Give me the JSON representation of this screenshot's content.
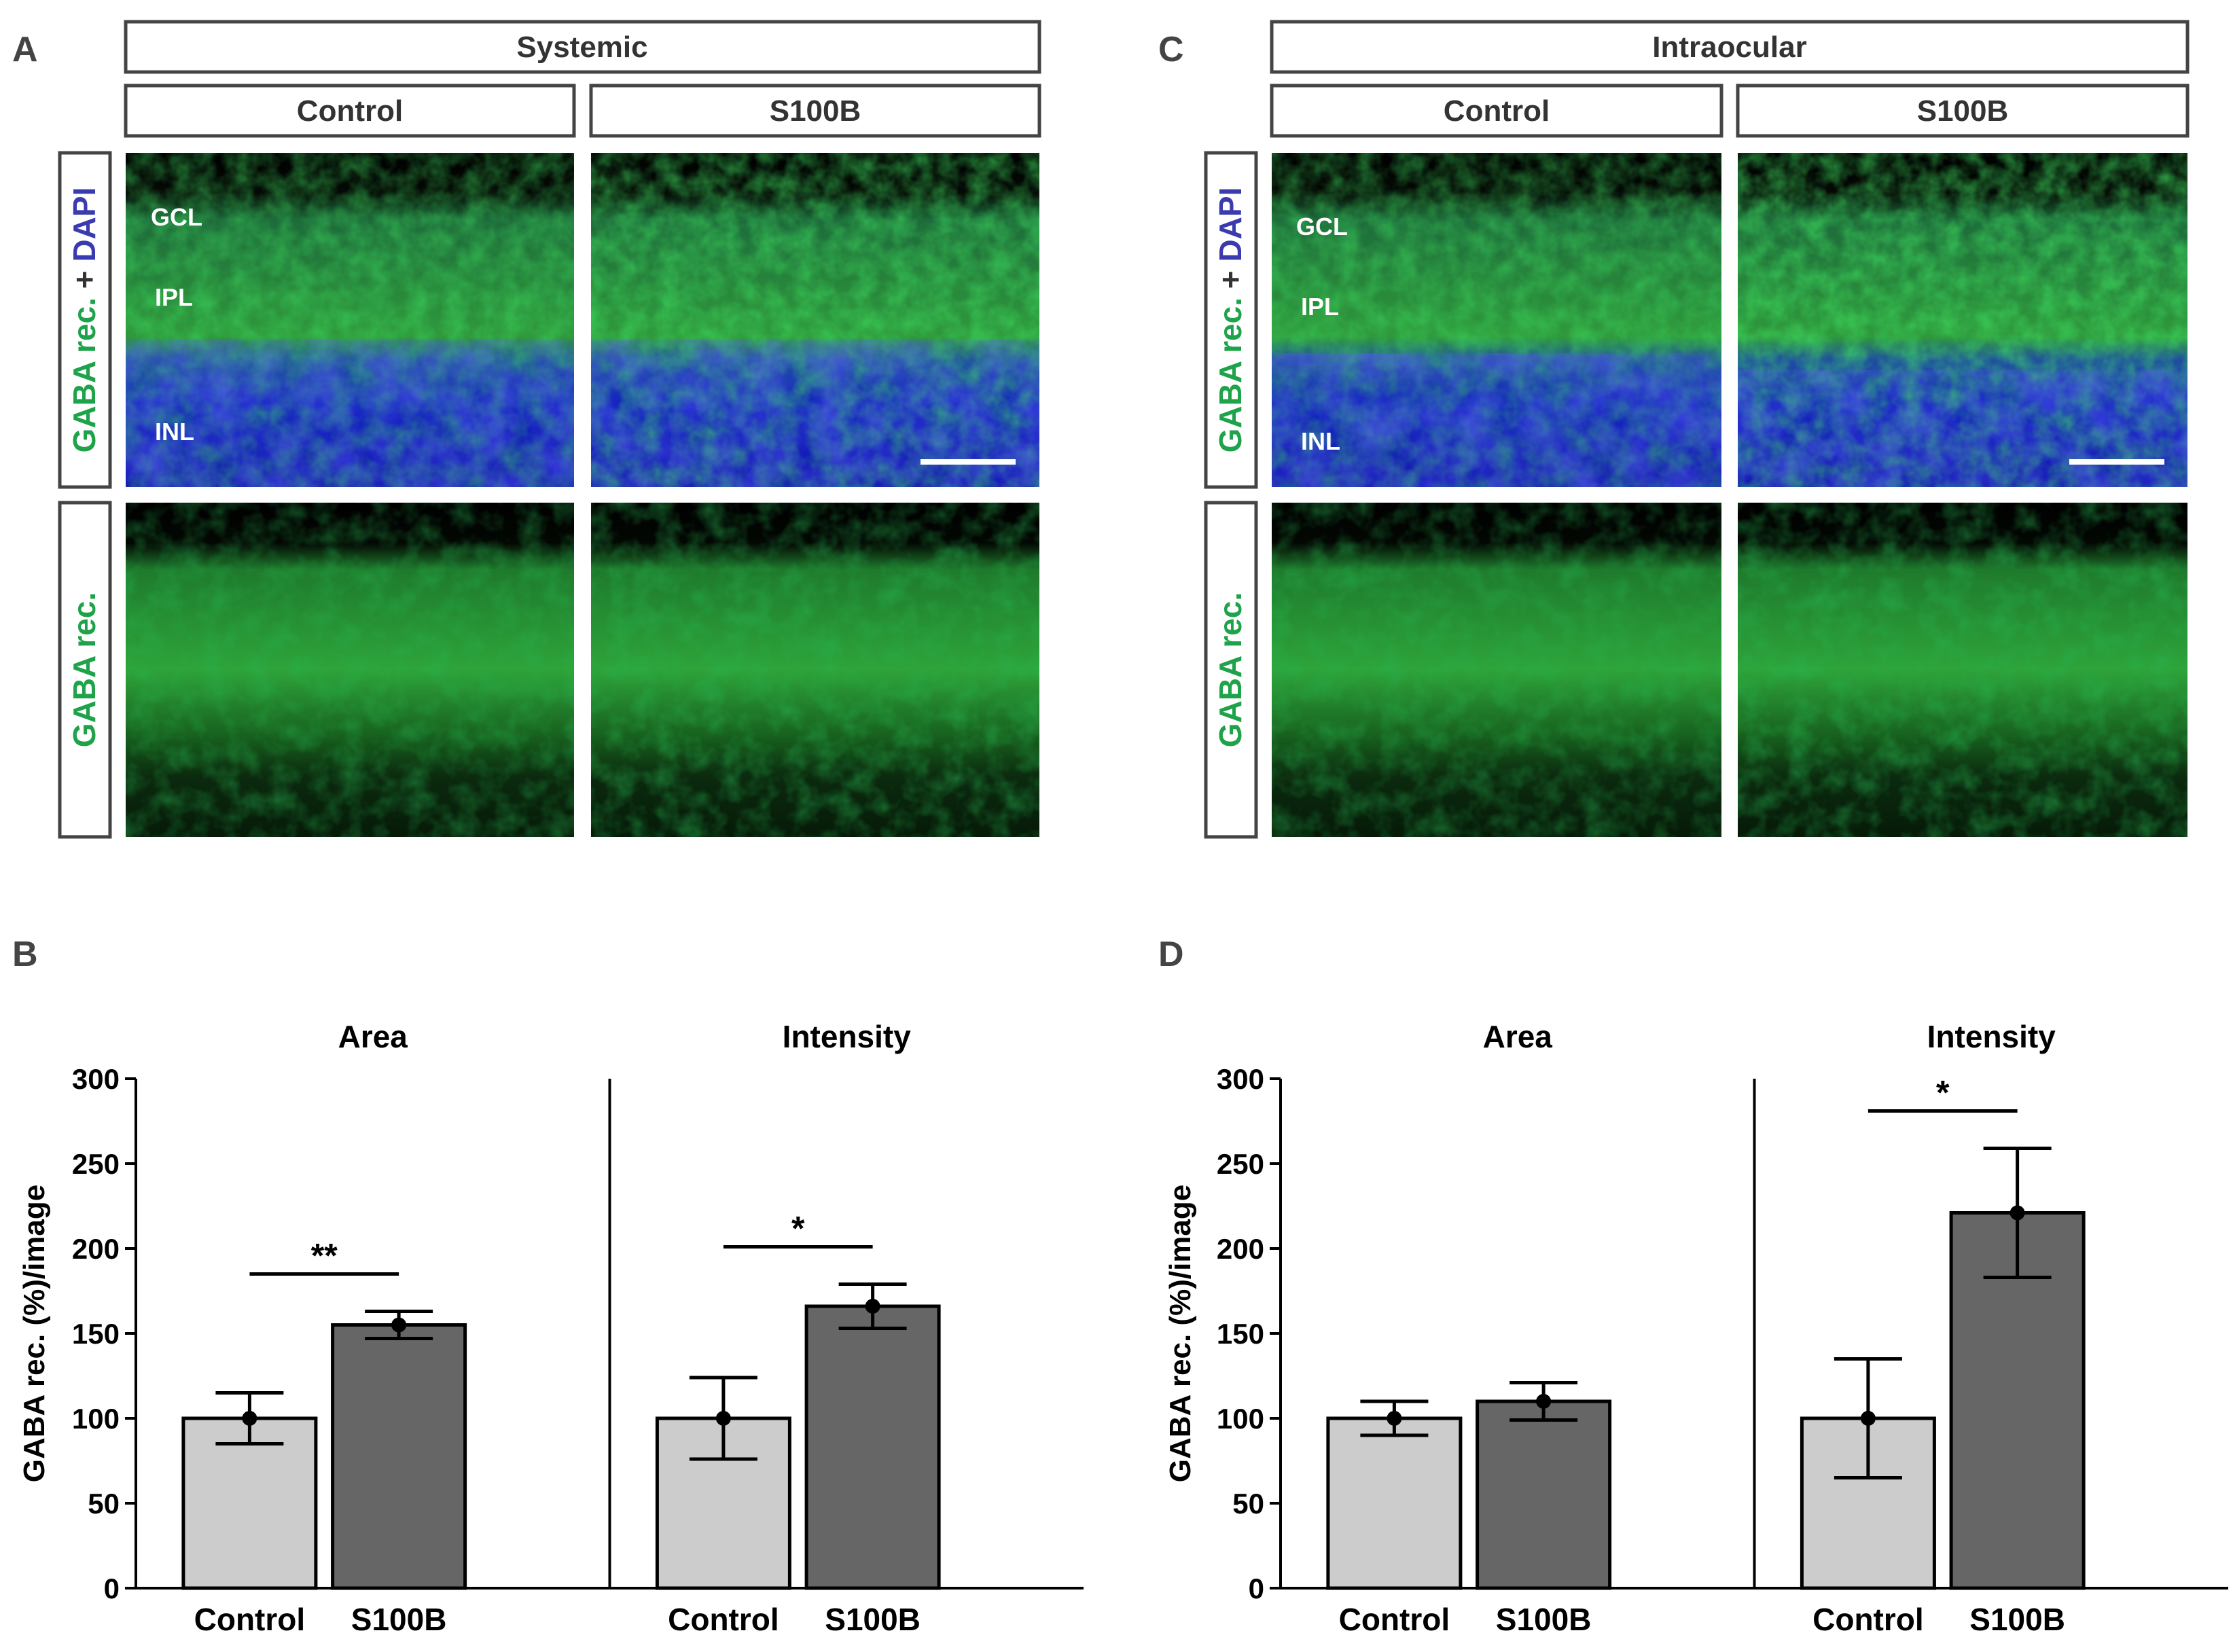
{
  "colors": {
    "control_bar": "#cccccc",
    "s100b_bar": "#666666",
    "gaba_green": "#22b14c",
    "dapi_blue": "#3a3ab0",
    "axis": "#000000"
  },
  "panels": {
    "A": {
      "letter": "A",
      "condition": "Systemic",
      "col1": "Control",
      "col2": "S100B"
    },
    "C": {
      "letter": "C",
      "condition": "Intraocular",
      "col1": "Control",
      "col2": "S100B"
    },
    "B": {
      "letter": "B"
    },
    "D": {
      "letter": "D"
    }
  },
  "row_labels": {
    "merge_green": "GABA rec.",
    "merge_plus": " + ",
    "merge_blue": "DAPI",
    "single": "GABA rec."
  },
  "layers": {
    "gcl": "GCL",
    "ipl": "IPL",
    "inl": "INL"
  },
  "chart_data": [
    {
      "panel": "B",
      "type": "bar",
      "ylabel": "GABA rec. (%)/image",
      "ylim": [
        0,
        300
      ],
      "yticks": [
        0,
        50,
        100,
        150,
        200,
        250,
        300
      ],
      "groups": [
        {
          "title": "Area",
          "categories": [
            "Control",
            "S100B"
          ],
          "values": [
            100,
            155
          ],
          "errors": [
            15,
            8
          ],
          "significance": "**"
        },
        {
          "title": "Intensity",
          "categories": [
            "Control",
            "S100B"
          ],
          "values": [
            100,
            166
          ],
          "errors": [
            24,
            13
          ],
          "significance": "*"
        }
      ]
    },
    {
      "panel": "D",
      "type": "bar",
      "ylabel": "GABA rec. (%)/image",
      "ylim": [
        0,
        300
      ],
      "yticks": [
        0,
        50,
        100,
        150,
        200,
        250,
        300
      ],
      "groups": [
        {
          "title": "Area",
          "categories": [
            "Control",
            "S100B"
          ],
          "values": [
            100,
            110
          ],
          "errors": [
            10,
            11
          ],
          "significance": ""
        },
        {
          "title": "Intensity",
          "categories": [
            "Control",
            "S100B"
          ],
          "values": [
            100,
            221
          ],
          "errors": [
            35,
            38
          ],
          "significance": "*"
        }
      ]
    }
  ]
}
